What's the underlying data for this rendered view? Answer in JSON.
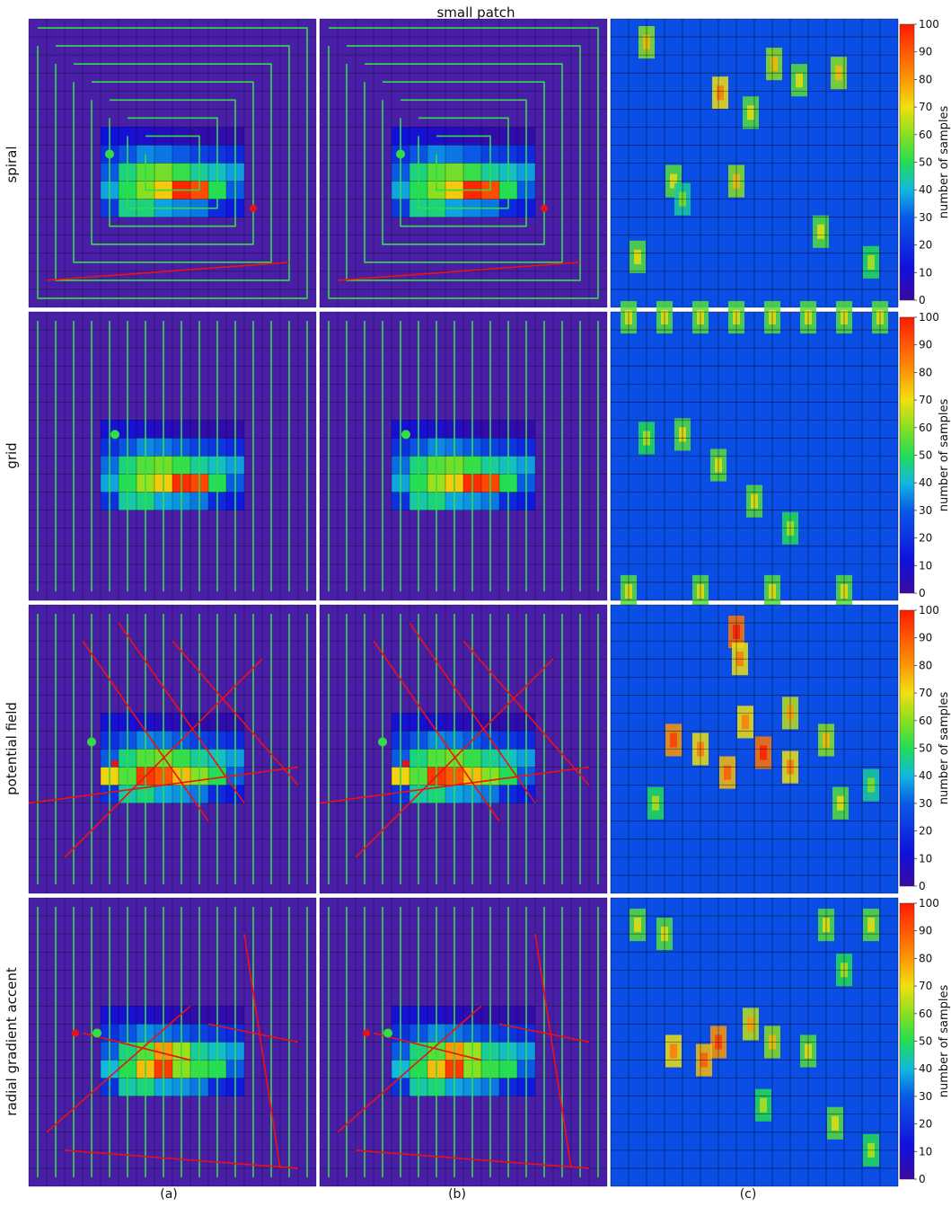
{
  "title": "small patch",
  "row_labels": [
    "spiral",
    "grid",
    "potential field",
    "radial gradient accent"
  ],
  "column_labels": [
    "(a)",
    "(b)",
    "(c)"
  ],
  "colorbar": {
    "label": "number of samples",
    "min": 0,
    "max": 100,
    "ticks": [
      0,
      10,
      20,
      30,
      40,
      50,
      60,
      70,
      80,
      90,
      100
    ],
    "colormap": "jet"
  },
  "colors": {
    "cell_low": "#4a1fa8",
    "path": "#33dd44",
    "jump": "#ee1111",
    "grid_line": "#000000"
  },
  "chart_data": {
    "type": "heatmap",
    "grid_size": 16,
    "background_value": 0,
    "coverage_background_value": 27,
    "rows": [
      {
        "name": "spiral",
        "start": [
          4.5,
          7.5
        ],
        "end": [
          12.5,
          10.5
        ],
        "samples_heatmap": [
          [
            4,
            6,
            12
          ],
          [
            4,
            7,
            20
          ],
          [
            4,
            8,
            30
          ],
          [
            4,
            9,
            38
          ],
          [
            4,
            10,
            22
          ],
          [
            5,
            6,
            10
          ],
          [
            5,
            7,
            28
          ],
          [
            5,
            8,
            47
          ],
          [
            5,
            9,
            50
          ],
          [
            5,
            10,
            46
          ],
          [
            6,
            6,
            8
          ],
          [
            6,
            7,
            35
          ],
          [
            6,
            8,
            55
          ],
          [
            6,
            9,
            60
          ],
          [
            6,
            10,
            47
          ],
          [
            7,
            6,
            6
          ],
          [
            7,
            7,
            33
          ],
          [
            7,
            8,
            58
          ],
          [
            7,
            9,
            73
          ],
          [
            7,
            10,
            38
          ],
          [
            8,
            6,
            4
          ],
          [
            8,
            7,
            30
          ],
          [
            8,
            8,
            52
          ],
          [
            8,
            9,
            98
          ],
          [
            8,
            10,
            35
          ],
          [
            9,
            6,
            2
          ],
          [
            9,
            7,
            24
          ],
          [
            9,
            8,
            45
          ],
          [
            9,
            9,
            92
          ],
          [
            9,
            10,
            33
          ],
          [
            10,
            6,
            3
          ],
          [
            10,
            7,
            21
          ],
          [
            10,
            8,
            42
          ],
          [
            10,
            9,
            50
          ],
          [
            10,
            10,
            18
          ],
          [
            11,
            6,
            2
          ],
          [
            11,
            7,
            18
          ],
          [
            11,
            8,
            37
          ],
          [
            11,
            9,
            30
          ],
          [
            11,
            10,
            14
          ]
        ],
        "coverage_hotspots": [
          [
            2.0,
            1.3,
            60
          ],
          [
            6.1,
            4.1,
            70
          ],
          [
            7.8,
            5.2,
            55
          ],
          [
            9.1,
            2.5,
            60
          ],
          [
            10.5,
            3.4,
            55
          ],
          [
            12.7,
            3.0,
            60
          ],
          [
            3.5,
            9.0,
            55
          ],
          [
            7.0,
            9.0,
            60
          ],
          [
            11.7,
            11.8,
            55
          ],
          [
            14.5,
            13.5,
            50
          ],
          [
            1.5,
            13.2,
            55
          ],
          [
            4.0,
            10.0,
            45
          ]
        ]
      },
      {
        "name": "grid",
        "start": [
          4.8,
          6.8
        ],
        "end": null,
        "samples_heatmap": [
          [
            4,
            6,
            10
          ],
          [
            4,
            7,
            20
          ],
          [
            4,
            8,
            32
          ],
          [
            4,
            9,
            38
          ],
          [
            4,
            10,
            20
          ],
          [
            5,
            6,
            10
          ],
          [
            5,
            7,
            28
          ],
          [
            5,
            8,
            47
          ],
          [
            5,
            9,
            50
          ],
          [
            5,
            10,
            44
          ],
          [
            6,
            6,
            8
          ],
          [
            6,
            7,
            35
          ],
          [
            6,
            8,
            55
          ],
          [
            6,
            9,
            62
          ],
          [
            6,
            10,
            47
          ],
          [
            7,
            6,
            6
          ],
          [
            7,
            7,
            33
          ],
          [
            7,
            8,
            58
          ],
          [
            7,
            9,
            73
          ],
          [
            7,
            10,
            38
          ],
          [
            8,
            6,
            4
          ],
          [
            8,
            7,
            30
          ],
          [
            8,
            8,
            52
          ],
          [
            8,
            9,
            97
          ],
          [
            8,
            10,
            36
          ],
          [
            9,
            6,
            2
          ],
          [
            9,
            7,
            24
          ],
          [
            9,
            8,
            45
          ],
          [
            9,
            9,
            93
          ],
          [
            9,
            10,
            33
          ],
          [
            10,
            6,
            3
          ],
          [
            10,
            7,
            21
          ],
          [
            10,
            8,
            42
          ],
          [
            10,
            9,
            50
          ],
          [
            10,
            10,
            18
          ],
          [
            11,
            6,
            2
          ],
          [
            11,
            7,
            18
          ],
          [
            11,
            8,
            37
          ],
          [
            11,
            9,
            30
          ],
          [
            11,
            10,
            14
          ]
        ],
        "coverage_hotspots": [
          [
            1.0,
            0.3,
            55
          ],
          [
            3.0,
            0.3,
            55
          ],
          [
            5.0,
            0.3,
            55
          ],
          [
            7.0,
            0.3,
            55
          ],
          [
            9.0,
            0.3,
            55
          ],
          [
            11.0,
            0.3,
            55
          ],
          [
            13.0,
            0.3,
            55
          ],
          [
            15.0,
            0.3,
            55
          ],
          [
            2.0,
            7.0,
            50
          ],
          [
            4.0,
            6.8,
            55
          ],
          [
            6.0,
            8.5,
            55
          ],
          [
            8.0,
            10.5,
            55
          ],
          [
            10.0,
            12.0,
            50
          ],
          [
            1.0,
            15.5,
            55
          ],
          [
            5.0,
            15.5,
            55
          ],
          [
            9.0,
            15.5,
            55
          ],
          [
            13.0,
            15.5,
            55
          ]
        ]
      },
      {
        "name": "potential field",
        "start": [
          3.5,
          7.6
        ],
        "end": [
          4.8,
          8.8
        ],
        "samples_heatmap": [
          [
            4,
            6,
            10
          ],
          [
            4,
            7,
            20
          ],
          [
            4,
            8,
            30
          ],
          [
            4,
            9,
            72
          ],
          [
            4,
            10,
            20
          ],
          [
            5,
            6,
            10
          ],
          [
            5,
            7,
            28
          ],
          [
            5,
            8,
            47
          ],
          [
            5,
            9,
            55
          ],
          [
            5,
            10,
            44
          ],
          [
            6,
            6,
            8
          ],
          [
            6,
            7,
            35
          ],
          [
            6,
            8,
            55
          ],
          [
            6,
            9,
            95
          ],
          [
            6,
            10,
            47
          ],
          [
            7,
            6,
            6
          ],
          [
            7,
            7,
            33
          ],
          [
            7,
            8,
            58
          ],
          [
            7,
            9,
            90
          ],
          [
            7,
            10,
            38
          ],
          [
            8,
            6,
            4
          ],
          [
            8,
            7,
            30
          ],
          [
            8,
            8,
            52
          ],
          [
            8,
            9,
            75
          ],
          [
            8,
            10,
            36
          ],
          [
            9,
            6,
            2
          ],
          [
            9,
            7,
            24
          ],
          [
            9,
            8,
            45
          ],
          [
            9,
            9,
            60
          ],
          [
            9,
            10,
            33
          ],
          [
            10,
            6,
            3
          ],
          [
            10,
            7,
            21
          ],
          [
            10,
            8,
            42
          ],
          [
            10,
            9,
            50
          ],
          [
            10,
            10,
            18
          ],
          [
            11,
            6,
            2
          ],
          [
            11,
            7,
            18
          ],
          [
            11,
            8,
            37
          ],
          [
            11,
            9,
            30
          ],
          [
            11,
            10,
            14
          ]
        ],
        "coverage_hotspots": [
          [
            7.0,
            1.5,
            85
          ],
          [
            7.2,
            3.0,
            70
          ],
          [
            3.5,
            7.5,
            80
          ],
          [
            5.0,
            8.0,
            70
          ],
          [
            6.5,
            9.3,
            75
          ],
          [
            8.5,
            8.2,
            85
          ],
          [
            10.0,
            9.0,
            70
          ],
          [
            7.5,
            6.5,
            70
          ],
          [
            10.0,
            6.0,
            65
          ],
          [
            12.0,
            7.5,
            60
          ],
          [
            12.8,
            11.0,
            55
          ],
          [
            2.5,
            11.0,
            50
          ],
          [
            14.5,
            10.0,
            45
          ]
        ]
      },
      {
        "name": "radial gradient accent",
        "start": [
          3.8,
          7.5
        ],
        "end": [
          2.6,
          7.5
        ],
        "samples_heatmap": [
          [
            4,
            6,
            10
          ],
          [
            4,
            7,
            20
          ],
          [
            4,
            8,
            30
          ],
          [
            4,
            9,
            40
          ],
          [
            4,
            10,
            20
          ],
          [
            5,
            6,
            10
          ],
          [
            5,
            7,
            28
          ],
          [
            5,
            8,
            47
          ],
          [
            5,
            9,
            50
          ],
          [
            5,
            10,
            44
          ],
          [
            6,
            6,
            8
          ],
          [
            6,
            7,
            35
          ],
          [
            6,
            8,
            55
          ],
          [
            6,
            9,
            75
          ],
          [
            6,
            10,
            47
          ],
          [
            7,
            6,
            6
          ],
          [
            7,
            7,
            33
          ],
          [
            7,
            8,
            80
          ],
          [
            7,
            9,
            95
          ],
          [
            7,
            10,
            38
          ],
          [
            8,
            6,
            4
          ],
          [
            8,
            7,
            30
          ],
          [
            8,
            8,
            62
          ],
          [
            8,
            9,
            60
          ],
          [
            8,
            10,
            36
          ],
          [
            9,
            6,
            2
          ],
          [
            9,
            7,
            24
          ],
          [
            9,
            8,
            45
          ],
          [
            9,
            9,
            52
          ],
          [
            9,
            10,
            33
          ],
          [
            10,
            6,
            3
          ],
          [
            10,
            7,
            21
          ],
          [
            10,
            8,
            42
          ],
          [
            10,
            9,
            50
          ],
          [
            10,
            10,
            18
          ],
          [
            11,
            6,
            2
          ],
          [
            11,
            7,
            18
          ],
          [
            11,
            8,
            37
          ],
          [
            11,
            9,
            30
          ],
          [
            11,
            10,
            14
          ]
        ],
        "coverage_hotspots": [
          [
            1.5,
            1.5,
            55
          ],
          [
            3.0,
            2.0,
            55
          ],
          [
            12.0,
            1.5,
            55
          ],
          [
            14.5,
            1.5,
            55
          ],
          [
            13.0,
            4.0,
            50
          ],
          [
            6.0,
            8.0,
            80
          ],
          [
            5.2,
            9.0,
            75
          ],
          [
            3.5,
            8.5,
            70
          ],
          [
            7.8,
            7.0,
            65
          ],
          [
            9.0,
            8.0,
            60
          ],
          [
            11.0,
            8.5,
            55
          ],
          [
            8.5,
            11.5,
            50
          ],
          [
            12.5,
            12.5,
            55
          ],
          [
            14.5,
            14.0,
            50
          ]
        ]
      }
    ]
  }
}
